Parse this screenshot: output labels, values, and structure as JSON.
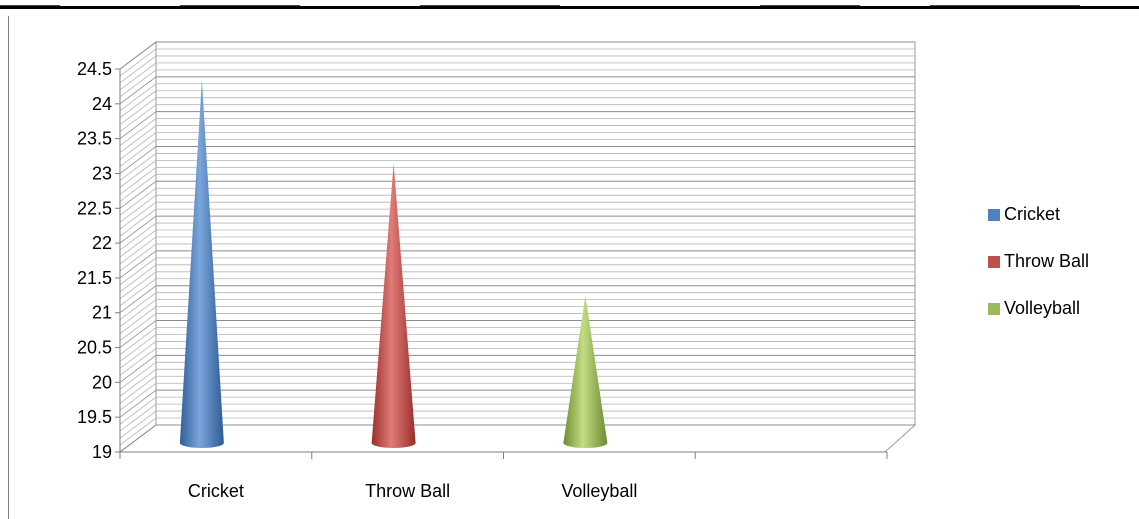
{
  "chart_data": {
    "type": "bar",
    "title": "",
    "xlabel": "",
    "ylabel": "",
    "categories": [
      "Cricket",
      "Throw Ball",
      "Volleyball"
    ],
    "series": [
      {
        "name": "Cricket",
        "values": [
          24.2,
          null,
          null
        ]
      },
      {
        "name": "Throw Ball",
        "values": [
          null,
          23.0,
          null
        ]
      },
      {
        "name": "Volleyball",
        "values": [
          null,
          null,
          21.1
        ]
      }
    ],
    "ylim": [
      19,
      24.5
    ],
    "yticks": [
      "19",
      "19.5",
      "20",
      "20.5",
      "21",
      "21.5",
      "22",
      "22.5",
      "23",
      "23.5",
      "24",
      "24.5"
    ],
    "bar_shape": "cone",
    "grid": true,
    "legend_position": "right",
    "colors": {
      "Cricket": "#4f81bd",
      "Throw Ball": "#c0504d",
      "Volleyball": "#9bbb59"
    }
  }
}
